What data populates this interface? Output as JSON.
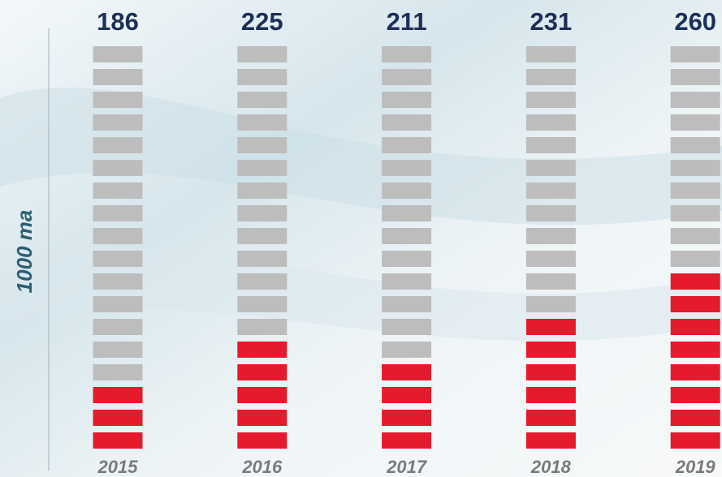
{
  "chart_data": {
    "type": "pictogram",
    "categories": [
      "2015",
      "2016",
      "2017",
      "2018",
      "2019"
    ],
    "values": [
      186,
      225,
      211,
      231,
      260
    ],
    "y_label": "1000 ma",
    "series": [
      {
        "color": "#e31b2d",
        "values": [
          3,
          5,
          4,
          6,
          8
        ]
      },
      {
        "color": "#bdbdbd",
        "values": [
          15,
          13,
          14,
          12,
          10
        ]
      }
    ]
  }
}
